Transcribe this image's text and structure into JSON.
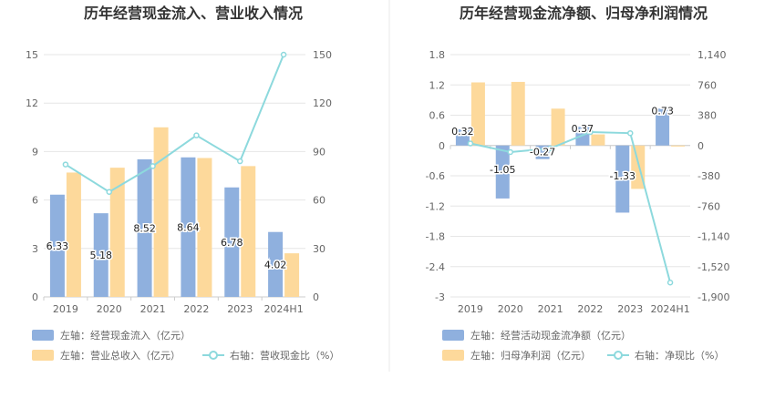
{
  "colors": {
    "bar_blue": "#8fb0de",
    "bar_orange": "#fdd99b",
    "line": "#8dd9dd",
    "divider": "#e8e8e8"
  },
  "chart_data": [
    {
      "type": "bar",
      "title": "历年经营现金流入、营业收入情况",
      "categories": [
        "2019",
        "2020",
        "2021",
        "2022",
        "2023",
        "2024H1"
      ],
      "left_axis": {
        "ticks": [
          "0",
          "3",
          "6",
          "9",
          "12",
          "15"
        ],
        "ylim": [
          0,
          15
        ]
      },
      "right_axis": {
        "ticks": [
          "0",
          "30",
          "60",
          "90",
          "120",
          "150"
        ],
        "ylim": [
          0,
          150
        ]
      },
      "series": [
        {
          "name": "左轴：经营现金流入（亿元）",
          "kind": "bar",
          "axis": "left",
          "values": [
            6.33,
            5.18,
            8.52,
            8.64,
            6.78,
            4.02
          ],
          "labels": [
            "6.33",
            "5.18",
            "8.52",
            "8.64",
            "6.78",
            "4.02"
          ]
        },
        {
          "name": "左轴：营业总收入（亿元）",
          "kind": "bar",
          "axis": "left",
          "values": [
            7.7,
            8.0,
            10.5,
            8.6,
            8.1,
            2.7
          ]
        },
        {
          "name": "右轴：营收现金比（%）",
          "kind": "line",
          "axis": "right",
          "values": [
            82,
            65,
            81,
            100,
            84,
            150
          ]
        }
      ]
    },
    {
      "type": "bar",
      "title": "历年经营现金流净额、归母净利润情况",
      "categories": [
        "2019",
        "2020",
        "2021",
        "2022",
        "2023",
        "2024H1"
      ],
      "left_axis": {
        "ticks": [
          "1.8",
          "1.2",
          "0.6",
          "0",
          "-0.6",
          "-1.2",
          "-1.8",
          "-2.4",
          "-3"
        ],
        "ylim": [
          -3,
          1.8
        ]
      },
      "right_axis": {
        "ticks": [
          "1,140",
          "760",
          "380",
          "0",
          "-380",
          "-760",
          "-1,140",
          "-1,520",
          "-1,900"
        ],
        "ylim": [
          -1900,
          1140
        ]
      },
      "series": [
        {
          "name": "左轴：经营活动现金流净额（亿元）",
          "kind": "bar",
          "axis": "left",
          "values": [
            0.32,
            -1.05,
            -0.27,
            0.37,
            -1.33,
            0.73
          ],
          "labels": [
            "0.32",
            "-1.05",
            "-0.27",
            "0.37",
            "-1.33",
            "0.73"
          ]
        },
        {
          "name": "左轴：归母净利润（亿元）",
          "kind": "bar",
          "axis": "left",
          "values": [
            1.25,
            1.26,
            0.73,
            0.22,
            -0.86,
            -0.02
          ]
        },
        {
          "name": "右轴：净现比（%）",
          "kind": "line",
          "axis": "right",
          "values": [
            26,
            -83,
            -37,
            168,
            155,
            -1720
          ]
        }
      ]
    }
  ]
}
